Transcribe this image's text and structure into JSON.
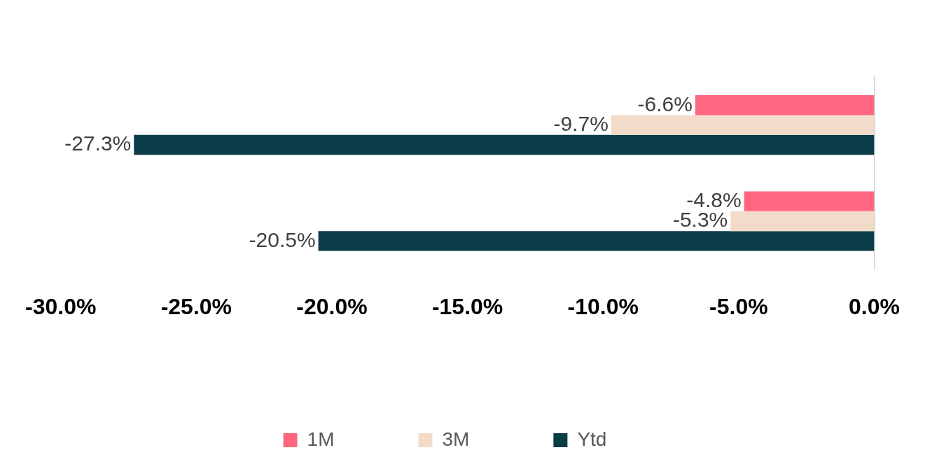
{
  "chart_data": {
    "type": "bar",
    "orientation": "horizontal",
    "categories": [
      null,
      null
    ],
    "series": [
      {
        "name": "1M",
        "color": "#ff6680",
        "values": [
          -6.6,
          -4.8
        ],
        "value_labels": [
          "-6.6%",
          "-4.8%"
        ]
      },
      {
        "name": "3M",
        "color": "#f2dcc9",
        "values": [
          -9.7,
          -5.3
        ],
        "value_labels": [
          "-9.7%",
          "-5.3%"
        ]
      },
      {
        "name": "Ytd",
        "color": "#0b3c49",
        "values": [
          -27.3,
          -20.5
        ],
        "value_labels": [
          "-27.3%",
          "-20.5%"
        ]
      }
    ],
    "xlim": [
      -30,
      0
    ],
    "xticks": [
      {
        "value": -30,
        "label": "-30.0%"
      },
      {
        "value": -25,
        "label": "-25.0%"
      },
      {
        "value": -20,
        "label": "-20.0%"
      },
      {
        "value": -15,
        "label": "-15.0%"
      },
      {
        "value": -10,
        "label": "-10.0%"
      },
      {
        "value": -5,
        "label": "-5.0%"
      },
      {
        "value": 0,
        "label": "0.0%"
      }
    ],
    "grid": false,
    "legend": "bottom",
    "data_labels": true,
    "tick_labels": "x"
  }
}
